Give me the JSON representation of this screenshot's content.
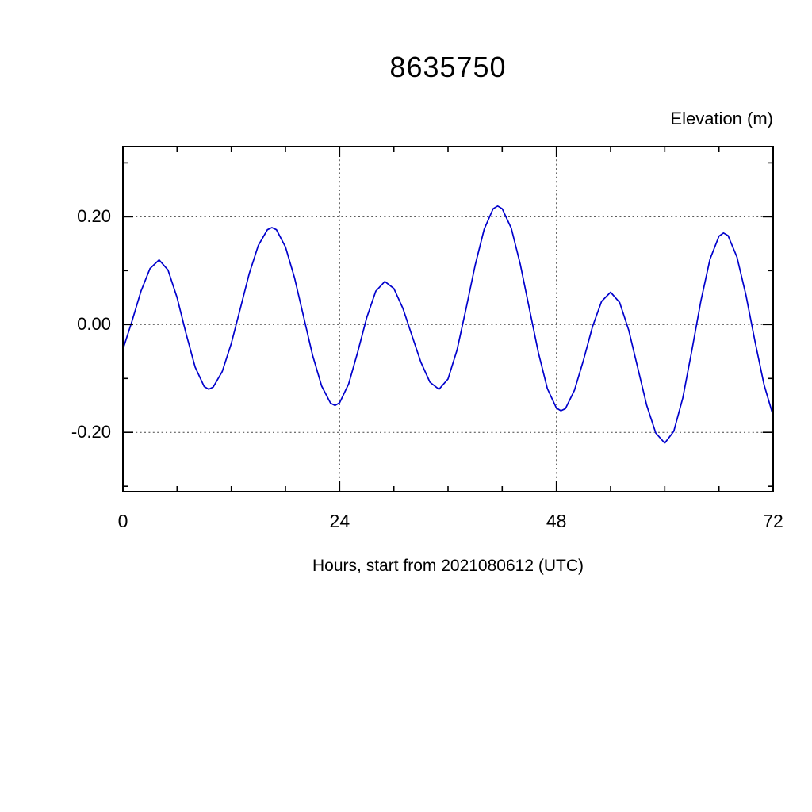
{
  "chart_data": {
    "type": "line",
    "title": "8635750",
    "ylabel": "Elevation (m)",
    "xlabel": "Hours, start from 2021080612 (UTC)",
    "xlim": [
      0,
      72
    ],
    "ylim": [
      -0.31,
      0.33
    ],
    "xtick_values": [
      0,
      24,
      48,
      72
    ],
    "xtick_labels": [
      "0",
      "24",
      "48",
      "72"
    ],
    "x_minor_step": 6,
    "ytick_values": [
      0.2,
      0.0,
      -0.2
    ],
    "ytick_labels": [
      "0.20",
      "0.00",
      "-0.20"
    ],
    "y_minor_values": [
      0.3,
      0.1,
      -0.1,
      -0.3
    ],
    "grid_x": [
      24,
      48
    ],
    "grid_y": [
      0.2,
      0.0,
      -0.2
    ],
    "grid_style": "dotted",
    "frame_color": "#000000",
    "line_color": "#0000cc",
    "legend": "none",
    "series": [
      {
        "name": "elevation",
        "x": [
          0,
          1,
          2,
          3,
          4,
          5,
          6,
          7,
          8,
          9,
          9.5,
          10,
          11,
          12,
          13,
          14,
          15,
          16,
          16.5,
          17,
          18,
          19,
          20,
          21,
          22,
          23,
          23.5,
          24,
          25,
          26,
          27,
          28,
          29,
          30,
          31,
          32,
          33,
          34,
          35,
          36,
          37,
          38,
          39,
          40,
          41,
          41.5,
          42,
          43,
          44,
          45,
          46,
          47,
          48,
          48.5,
          49,
          50,
          51,
          52,
          53,
          54,
          55,
          56,
          57,
          58,
          59,
          60,
          61,
          62,
          63,
          64,
          65,
          66,
          66.5,
          67,
          68,
          69,
          70,
          71,
          72
        ],
        "y": [
          -0.046,
          0.006,
          0.062,
          0.104,
          0.12,
          0.101,
          0.05,
          -0.017,
          -0.079,
          -0.115,
          -0.12,
          -0.116,
          -0.087,
          -0.035,
          0.03,
          0.095,
          0.147,
          0.176,
          0.18,
          0.176,
          0.144,
          0.087,
          0.015,
          -0.057,
          -0.114,
          -0.146,
          -0.15,
          -0.145,
          -0.11,
          -0.051,
          0.013,
          0.062,
          0.08,
          0.067,
          0.03,
          -0.02,
          -0.07,
          -0.107,
          -0.12,
          -0.101,
          -0.047,
          0.03,
          0.11,
          0.177,
          0.215,
          0.22,
          0.215,
          0.179,
          0.112,
          0.03,
          -0.052,
          -0.119,
          -0.155,
          -0.16,
          -0.156,
          -0.122,
          -0.066,
          -0.004,
          0.043,
          0.06,
          0.041,
          -0.01,
          -0.08,
          -0.15,
          -0.201,
          -0.22,
          -0.198,
          -0.136,
          -0.048,
          0.044,
          0.121,
          0.164,
          0.17,
          0.165,
          0.125,
          0.054,
          -0.032,
          -0.112,
          -0.169
        ]
      }
    ]
  }
}
